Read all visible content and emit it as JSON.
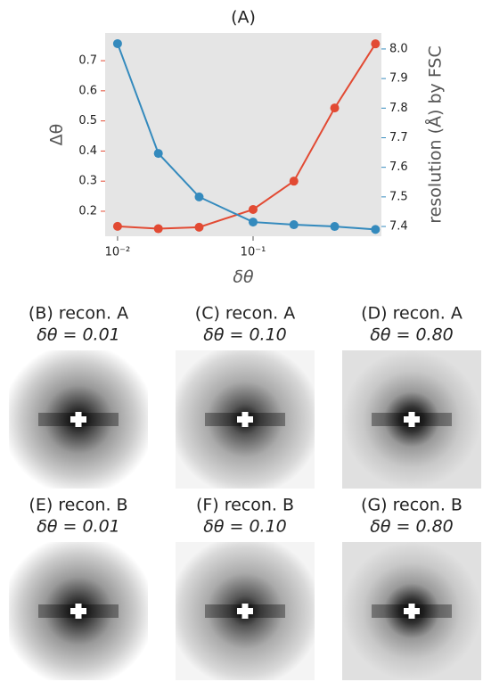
{
  "chart_data": {
    "type": "line",
    "title": "(A)",
    "x_label": "δθ",
    "y_label": "Δθ",
    "y2_label": "resolution (Å) by FSC",
    "x": [
      0.01,
      0.02,
      0.04,
      0.1,
      0.2,
      0.4,
      0.8
    ],
    "series": [
      {
        "color": "#e24a33",
        "values": [
          0.15,
          0.142,
          0.147,
          0.206,
          0.3,
          0.543,
          0.756
        ]
      },
      {
        "color": "#348abd",
        "axis": "y2",
        "values": [
          8.018,
          7.647,
          7.5,
          7.415,
          7.406,
          7.4,
          7.39
        ]
      }
    ],
    "xlog": true,
    "xlim": [
      0.0081,
      0.885
    ],
    "xticks": [
      {
        "value": 0.01,
        "label": "10⁻²"
      },
      {
        "value": 0.1,
        "label": "10⁻¹"
      }
    ],
    "ylim": [
      0.117,
      0.792
    ],
    "yticks": [
      0.2,
      0.3,
      0.4,
      0.5,
      0.6,
      0.7
    ],
    "y2lim": [
      7.367,
      8.054
    ],
    "y2ticks": [
      7.4,
      7.5,
      7.6,
      7.7,
      7.8,
      7.9,
      {
        "value": 8,
        "label": "8.0"
      }
    ],
    "grid": false,
    "background": "#e5e5e5"
  },
  "panels": [
    {
      "title": "(B) recon. A",
      "subtitle": "δθ = 0.01"
    },
    {
      "title": "(C) recon. A",
      "subtitle": "δθ = 0.10"
    },
    {
      "title": "(D) recon. A",
      "subtitle": "δθ = 0.80"
    },
    {
      "title": "(E) recon. B",
      "subtitle": "δθ = 0.01"
    },
    {
      "title": "(F) recon. B",
      "subtitle": "δθ = 0.10"
    },
    {
      "title": "(G) recon. B",
      "subtitle": "δθ = 0.80"
    }
  ]
}
